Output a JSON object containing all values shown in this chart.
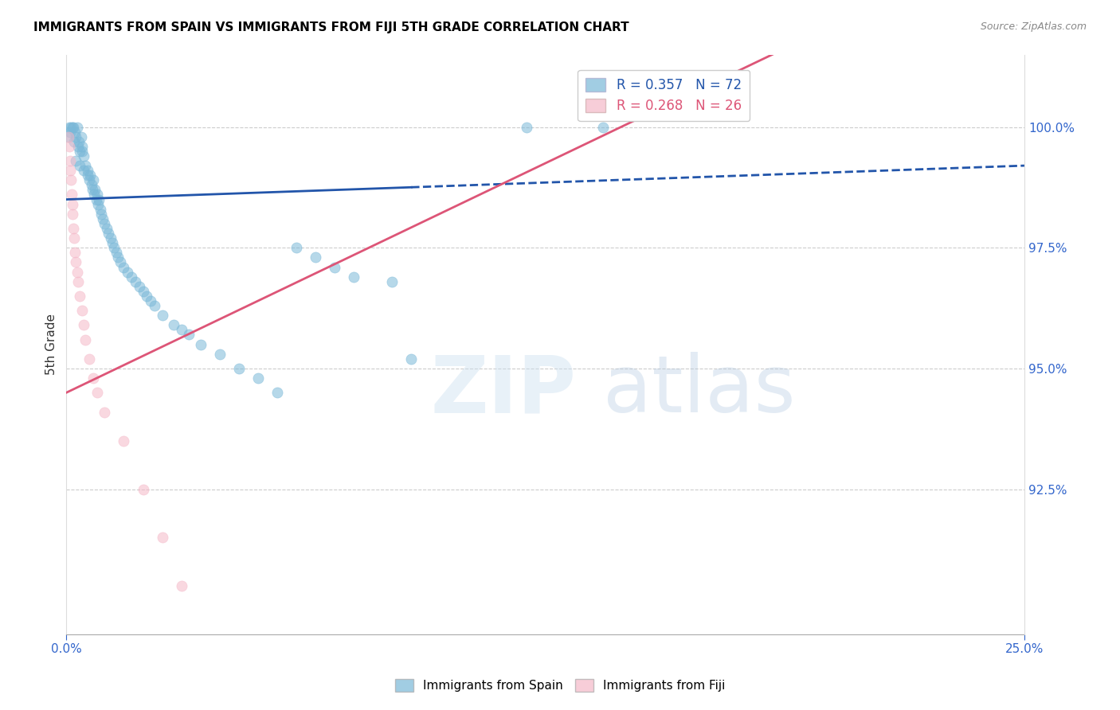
{
  "title": "IMMIGRANTS FROM SPAIN VS IMMIGRANTS FROM FIJI 5TH GRADE CORRELATION CHART",
  "source": "Source: ZipAtlas.com",
  "ylabel": "5th Grade",
  "ytick_values": [
    92.5,
    95.0,
    97.5,
    100.0
  ],
  "ytick_labels": [
    "92.5%",
    "95.0%",
    "97.5%",
    "100.0%"
  ],
  "xlim": [
    0.0,
    25.0
  ],
  "ylim": [
    89.5,
    101.5
  ],
  "legend_blue_r": "R = 0.357",
  "legend_blue_n": "N = 72",
  "legend_pink_r": "R = 0.268",
  "legend_pink_n": "N = 26",
  "blue_color": "#7ab8d8",
  "pink_color": "#f5b8c8",
  "blue_line_color": "#2255aa",
  "pink_line_color": "#dd5577",
  "blue_scatter_x": [
    0.05,
    0.08,
    0.1,
    0.12,
    0.15,
    0.18,
    0.2,
    0.22,
    0.25,
    0.28,
    0.3,
    0.32,
    0.35,
    0.38,
    0.4,
    0.42,
    0.45,
    0.5,
    0.55,
    0.6,
    0.62,
    0.65,
    0.68,
    0.7,
    0.72,
    0.75,
    0.78,
    0.8,
    0.82,
    0.85,
    0.88,
    0.9,
    0.95,
    1.0,
    1.05,
    1.1,
    1.15,
    1.2,
    1.25,
    1.3,
    1.35,
    1.4,
    1.5,
    1.6,
    1.7,
    1.8,
    1.9,
    2.0,
    2.1,
    2.2,
    2.3,
    2.5,
    2.8,
    3.0,
    3.2,
    3.5,
    4.0,
    4.5,
    5.0,
    5.5,
    6.0,
    6.5,
    7.0,
    7.5,
    8.5,
    9.0,
    12.0,
    14.0,
    0.25,
    0.35,
    0.45,
    0.55
  ],
  "blue_scatter_y": [
    99.8,
    100.0,
    99.9,
    100.0,
    100.0,
    100.0,
    99.7,
    99.9,
    99.8,
    100.0,
    99.6,
    99.7,
    99.5,
    99.8,
    99.5,
    99.6,
    99.4,
    99.2,
    99.1,
    98.9,
    99.0,
    98.8,
    98.7,
    98.9,
    98.6,
    98.7,
    98.5,
    98.6,
    98.4,
    98.5,
    98.3,
    98.2,
    98.1,
    98.0,
    97.9,
    97.8,
    97.7,
    97.6,
    97.5,
    97.4,
    97.3,
    97.2,
    97.1,
    97.0,
    96.9,
    96.8,
    96.7,
    96.6,
    96.5,
    96.4,
    96.3,
    96.1,
    95.9,
    95.8,
    95.7,
    95.5,
    95.3,
    95.0,
    94.8,
    94.5,
    97.5,
    97.3,
    97.1,
    96.9,
    96.8,
    95.2,
    100.0,
    100.0,
    99.3,
    99.2,
    99.1,
    99.0
  ],
  "pink_scatter_x": [
    0.05,
    0.07,
    0.09,
    0.1,
    0.12,
    0.14,
    0.15,
    0.17,
    0.18,
    0.2,
    0.22,
    0.25,
    0.28,
    0.3,
    0.35,
    0.4,
    0.45,
    0.5,
    0.6,
    0.7,
    0.8,
    1.0,
    1.5,
    2.0,
    2.5,
    3.0
  ],
  "pink_scatter_y": [
    99.8,
    99.6,
    99.3,
    99.1,
    98.9,
    98.6,
    98.4,
    98.2,
    97.9,
    97.7,
    97.4,
    97.2,
    97.0,
    96.8,
    96.5,
    96.2,
    95.9,
    95.6,
    95.2,
    94.8,
    94.5,
    94.1,
    93.5,
    92.5,
    91.5,
    90.5
  ],
  "blue_line_start_x": 0.0,
  "blue_line_end_solid_x": 9.0,
  "blue_line_end_dashed_x": 25.0,
  "blue_line_slope": 0.028,
  "blue_line_intercept": 98.5,
  "pink_line_slope": 0.38,
  "pink_line_intercept": 94.5
}
